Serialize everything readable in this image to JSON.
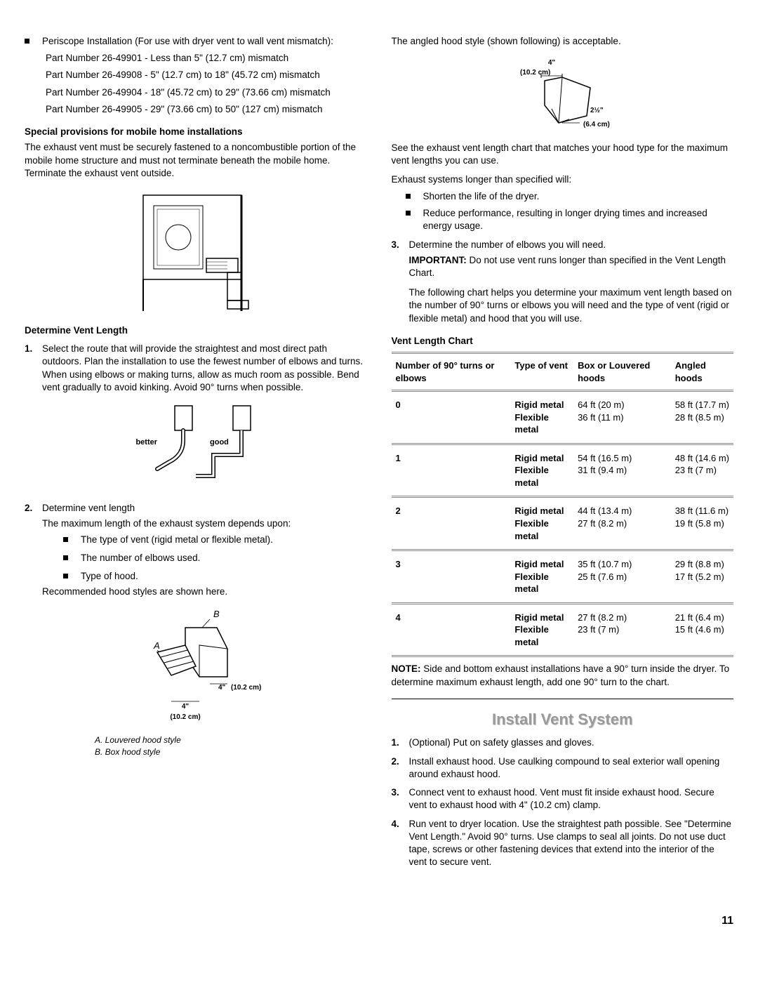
{
  "left": {
    "periscope_intro": "Periscope Installation (For use with dryer vent to wall vent mismatch):",
    "parts": [
      "Part Number 26-49901 - Less than 5\" (12.7 cm) mismatch",
      "Part Number 26-49908 - 5\" (12.7 cm)  to 18\" (45.72 cm) mismatch",
      "Part Number 26-49904 - 18\" (45.72 cm) to 29\" (73.66 cm) mismatch",
      "Part Number 26-49905 - 29\" (73.66 cm) to 50\" (127 cm) mismatch"
    ],
    "mobile_heading": "Special provisions for mobile home installations",
    "mobile_text": "The exhaust vent must be securely fastened to a noncombustible portion of the mobile home structure and must not terminate beneath the mobile home. Terminate the exhaust vent outside.",
    "determine_heading": "Determine Vent Length",
    "step1": "Select the route that will provide the straightest and most direct path outdoors. Plan the installation to use the fewest number of elbows and turns. When using elbows or making turns, allow as much room as possible. Bend vent gradually to avoid kinking. Avoid 90° turns when possible.",
    "diag2_better": "better",
    "diag2_good": "good",
    "step2": "Determine vent length",
    "step2_sub": "The maximum length of the exhaust system depends upon:",
    "step2_bullets": [
      "The type of vent (rigid metal or flexible metal).",
      "The number of elbows used.",
      "Type of hood."
    ],
    "rec_hood": "Recommended hood styles are shown here.",
    "diag3_A": "A",
    "diag3_B": "B",
    "diag3_dim1": "4\"",
    "diag3_dim1_cm": "(10.2 cm)",
    "diag3_dim2": "(10.2 cm)",
    "diag3_capA": "A. Louvered hood style",
    "diag3_capB": "B. Box hood style"
  },
  "right": {
    "angled_intro": "The angled hood style (shown following) is acceptable.",
    "diag4_top": "4\"",
    "diag4_top_cm": "(10.2 cm)",
    "diag4_side": "2½\"",
    "diag4_side_cm": "(6.4 cm)",
    "see_chart": "See the exhaust vent length chart that matches your hood type for the maximum vent lengths you can use.",
    "longer_intro": "Exhaust systems longer than specified will:",
    "longer_bullets": [
      "Shorten the life of the dryer.",
      "Reduce performance, resulting in longer drying times and increased energy usage."
    ],
    "step3": "Determine the number of elbows you will need.",
    "important_label": "IMPORTANT:",
    "important_text": " Do not use vent runs longer than specified in the Vent Length Chart.",
    "following": "The following chart helps you determine your maximum vent length based on the number of 90° turns or elbows you will need and the type of vent (rigid or flexible metal) and hood that you will use.",
    "chart_heading": "Vent Length Chart",
    "table": {
      "headers": [
        "Number of 90° turns or elbows",
        "Type of vent",
        "Box or Louvered hoods",
        "Angled hoods"
      ],
      "rows": [
        {
          "n": "0",
          "t1": "Rigid metal",
          "t2": "Flexible metal",
          "b1": "64 ft (20 m)",
          "b2": "36 ft (11 m)",
          "a1": "58 ft (17.7 m)",
          "a2": "28 ft (8.5 m)"
        },
        {
          "n": "1",
          "t1": "Rigid metal",
          "t2": "Flexible metal",
          "b1": "54 ft (16.5 m)",
          "b2": "31 ft (9.4 m)",
          "a1": "48 ft (14.6 m)",
          "a2": "23 ft (7 m)"
        },
        {
          "n": "2",
          "t1": "Rigid metal",
          "t2": "Flexible metal",
          "b1": "44 ft (13.4 m)",
          "b2": "27 ft (8.2 m)",
          "a1": "38 ft (11.6 m)",
          "a2": "19 ft (5.8 m)"
        },
        {
          "n": "3",
          "t1": "Rigid metal",
          "t2": "Flexible metal",
          "b1": "35 ft (10.7 m)",
          "b2": "25 ft (7.6 m)",
          "a1": "29 ft (8.8 m)",
          "a2": "17 ft (5.2 m)"
        },
        {
          "n": "4",
          "t1": "Rigid metal",
          "t2": "Flexible metal",
          "b1": "27 ft (8.2 m)",
          "b2": "23 ft (7 m)",
          "a1": "21 ft (6.4 m)",
          "a2": "15 ft (4.6 m)"
        }
      ]
    },
    "note_label": "NOTE:",
    "note_text": " Side and bottom exhaust installations have a 90° turn inside the dryer. To determine maximum exhaust length, add one 90° turn to the chart.",
    "install_heading": "Install Vent System",
    "install_steps": [
      "(Optional) Put on safety glasses and gloves.",
      "Install exhaust hood. Use caulking compound to seal exterior wall opening around exhaust hood.",
      "Connect vent to exhaust hood. Vent must fit inside exhaust hood. Secure vent to exhaust hood with 4\" (10.2 cm) clamp.",
      "Run vent to dryer location. Use the straightest path possible. See \"Determine Vent Length.\" Avoid 90° turns. Use clamps to seal all joints. Do not use duct tape, screws or other fastening devices that extend into the interior of the vent to secure vent."
    ]
  },
  "page_num": "11"
}
